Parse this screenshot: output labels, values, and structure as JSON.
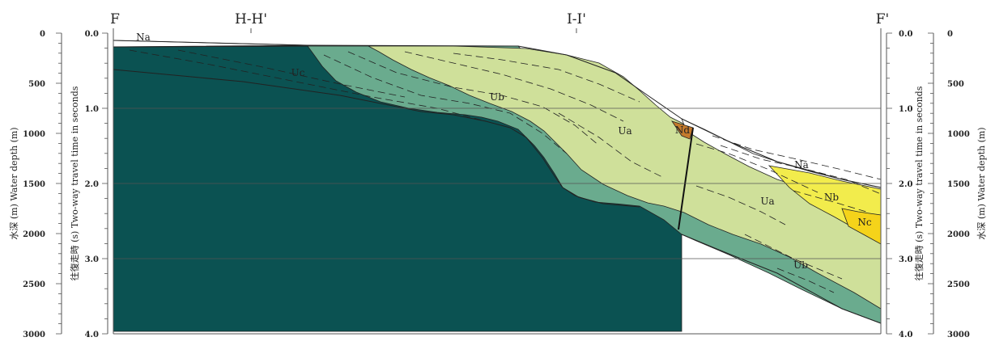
{
  "colors": {
    "uc": "#0b5252",
    "ub": "#6aab8e",
    "ua": "#cfe09a",
    "na": "#ffffff",
    "nb": "#f2ec4c",
    "nc": "#f5d31a",
    "nd": "#c47a2c",
    "grid": "#555555",
    "line": "#222222"
  },
  "section_markers": [
    "F",
    "H-H'",
    "I-I'",
    "F'"
  ],
  "left_axes": {
    "depth_title": "水深 (m)   Water depth (m)",
    "depth_ticks": [
      "0",
      "500",
      "1000",
      "1500",
      "2000",
      "2500",
      "3000"
    ],
    "twt_title": "往復走時 (s)  Two-way travel time in seconds",
    "twt_ticks": [
      "0.0",
      "1.0",
      "2.0",
      "3.0",
      "4.0"
    ]
  },
  "right_axes": {
    "twt_title": "往復走時 (s) Two-way travel time in seconds",
    "twt_ticks": [
      "0.0",
      "1.0",
      "2.0",
      "3.0",
      "4.0"
    ],
    "depth_title": "水深 (m)   Water depth (m)",
    "depth_ticks": [
      "0",
      "500",
      "1000",
      "1500",
      "2000",
      "2500",
      "3000"
    ]
  },
  "unit_labels": {
    "na_left": "Na",
    "uc": "Uc",
    "ub_upper": "Ub",
    "ua_left": "Ua",
    "nd": "Nd",
    "na_right": "Na",
    "nb": "Nb",
    "ua_right": "Ua",
    "nc": "Nc",
    "ub_lower": "Ub"
  }
}
